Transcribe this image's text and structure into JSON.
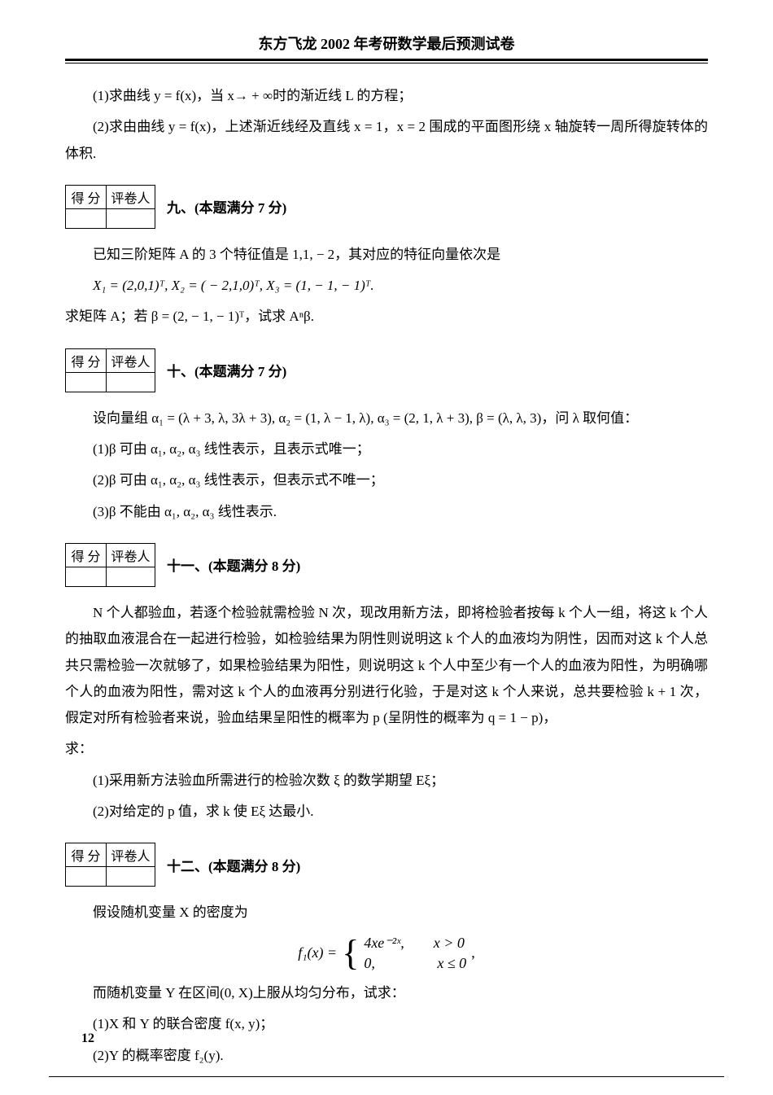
{
  "header": {
    "title": "东方飞龙 2002 年考研数学最后预测试卷"
  },
  "scorebox": {
    "score_label": "得 分",
    "grader_label": "评卷人"
  },
  "q8": {
    "p1": "(1)求曲线 y = f(x)，当 x→ + ∞时的渐近线 L 的方程；",
    "p2": "(2)求由曲线 y = f(x)，上述渐近线经及直线 x = 1，x = 2 围成的平面图形绕 x 轴旋转一周所得旋转体的体积."
  },
  "q9": {
    "title": "九、(本题满分 7 分)",
    "p1": "已知三阶矩阵 A 的 3 个特征值是 1,1, − 2，其对应的特征向量依次是",
    "p2": "X₁ = (2,0,1)ᵀ, X₂ = ( − 2,1,0)ᵀ, X₃ = (1, − 1, − 1)ᵀ.",
    "p3": "求矩阵 A；若 β = (2, − 1, − 1)ᵀ，试求 Aⁿβ."
  },
  "q10": {
    "title": "十、(本题满分 7 分)",
    "p1": "设向量组 α₁ = (λ + 3, λ, 3λ + 3), α₂ = (1, λ − 1, λ), α₃ = (2, 1, λ + 3), β = (λ, λ, 3)，问 λ 取何值：",
    "p2": "(1)β 可由 α₁, α₂, α₃ 线性表示，且表示式唯一；",
    "p3": "(2)β 可由 α₁, α₂, α₃ 线性表示，但表示式不唯一；",
    "p4": "(3)β 不能由 α₁, α₂, α₃ 线性表示."
  },
  "q11": {
    "title": "十一、(本题满分 8 分)",
    "p1": "N 个人都验血，若逐个检验就需检验 N 次，现改用新方法，即将检验者按每 k 个人一组，将这 k 个人的抽取血液混合在一起进行检验，如检验结果为阴性则说明这 k 个人的血液均为阴性，因而对这 k 个人总共只需检验一次就够了，如果检验结果为阳性，则说明这 k 个人中至少有一个人的血液为阳性，为明确哪个人的血液为阳性，需对这 k 个人的血液再分别进行化验，于是对这 k 个人来说，总共要检验 k + 1 次，假定对所有检验者来说，验血结果呈阳性的概率为 p (呈阴性的概率为 q = 1 − p)，",
    "p2": "求：",
    "p3": "(1)采用新方法验血所需进行的检验次数 ξ 的数学期望 Eξ；",
    "p4": "(2)对给定的 p 值，求 k 使 Eξ 达最小."
  },
  "q12": {
    "title": "十二、(本题满分 8 分)",
    "p1": "假设随机变量 X 的密度为",
    "eq_lhs": "f₁(x) = ",
    "eq_row1": "4xe⁻²ˣ,  x > 0",
    "eq_row2": "0,     x ≤ 0",
    "eq_tail": ",",
    "p2": "而随机变量 Y 在区间(0, X)上服从均匀分布，试求：",
    "p3": "(1)X 和 Y 的联合密度 f(x, y)；",
    "p4": "(2)Y 的概率密度 f₂(y)."
  },
  "page_number": "12",
  "colors": {
    "text": "#000000",
    "background": "#ffffff",
    "rule": "#000000"
  }
}
